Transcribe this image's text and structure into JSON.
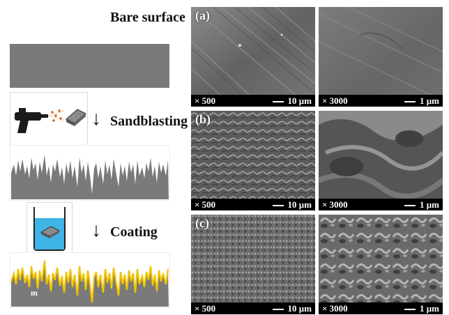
{
  "labels": {
    "bare_surface": "Bare surface",
    "sandblasting": "Sandblasting",
    "coating": "Coating",
    "coating_mark": "m"
  },
  "arrow_glyph": "↓",
  "sem_rows": [
    {
      "tag": "(a)",
      "left": {
        "magnification": "× 500",
        "scale": "10 μm"
      },
      "right": {
        "magnification": "× 3000",
        "scale": "1 μm"
      }
    },
    {
      "tag": "(b)",
      "left": {
        "magnification": "× 500",
        "scale": "10 μm"
      },
      "right": {
        "magnification": "× 3000",
        "scale": "1 μm"
      }
    },
    {
      "tag": "(c)",
      "left": {
        "magnification": "× 500",
        "scale": "10 μm"
      },
      "right": {
        "magnification": "× 3000",
        "scale": "1 μm"
      }
    }
  ],
  "colors": {
    "substrate": "#7a7a7a",
    "coating_edge": "#f2c400",
    "beaker_liquid": "#3fb4e6",
    "sem_bar": "#000000"
  }
}
